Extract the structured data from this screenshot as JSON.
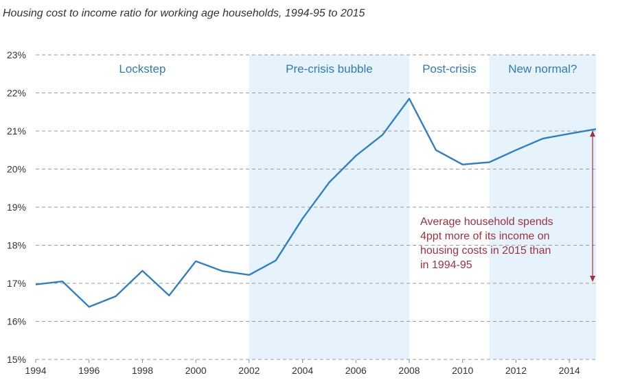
{
  "chart_data": {
    "type": "line",
    "title": "Housing cost to income ratio for working age households, 1994-95 to 2015",
    "xlabel": "",
    "ylabel": "",
    "xlim": [
      1994,
      2015
    ],
    "ylim": [
      15,
      23
    ],
    "x_ticks": [
      1994,
      1996,
      1998,
      2000,
      2002,
      2004,
      2006,
      2008,
      2010,
      2012,
      2014
    ],
    "x_tick_labels": [
      "1994",
      "1996",
      "1998",
      "2000",
      "2002",
      "2004",
      "2006",
      "2008",
      "2010",
      "2012",
      "2014"
    ],
    "y_ticks": [
      15,
      16,
      17,
      18,
      19,
      20,
      21,
      22,
      23
    ],
    "y_tick_labels": [
      "15%",
      "16%",
      "17%",
      "18%",
      "19%",
      "20%",
      "21%",
      "22%",
      "23%"
    ],
    "grid": "horizontal-dashed",
    "series": [
      {
        "name": "",
        "color": "#2e7fc4",
        "x": [
          1994,
          1995,
          1996,
          1997,
          1998,
          1999,
          2000,
          2001,
          2002,
          2003,
          2004,
          2005,
          2006,
          2007,
          2008,
          2009,
          2010,
          2011,
          2012,
          2013,
          2014,
          2015
        ],
        "values": [
          16.97,
          17.05,
          16.38,
          16.66,
          17.33,
          16.68,
          17.58,
          17.32,
          17.22,
          17.6,
          18.7,
          19.65,
          20.35,
          20.9,
          21.85,
          20.5,
          20.12,
          20.18,
          20.5,
          20.8,
          20.93,
          21.05
        ]
      }
    ],
    "periods": [
      {
        "label": "Lockstep",
        "start": 1994,
        "end": 2002,
        "shaded": false
      },
      {
        "label": "Pre-crisis bubble",
        "start": 2002,
        "end": 2008,
        "shaded": true
      },
      {
        "label": "Post-crisis",
        "start": 2008,
        "end": 2011,
        "shaded": false
      },
      {
        "label": "New normal?",
        "start": 2011,
        "end": 2015,
        "shaded": true
      }
    ],
    "shade_color": "#e6f2fc",
    "annotation": {
      "lines": [
        "Average household spends",
        "4ppt more of its income on",
        "housing costs in 2015 than",
        "in 1994-95"
      ],
      "color": "#a0313e",
      "arrow_x": 2015,
      "arrow_from": 17.0,
      "arrow_to": 21.05
    }
  }
}
